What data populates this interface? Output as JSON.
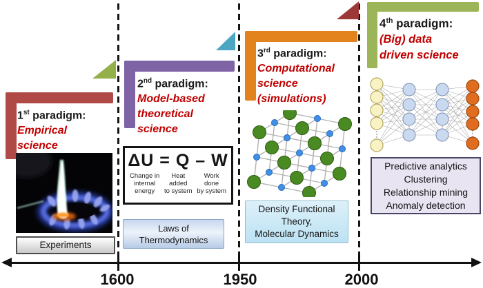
{
  "colors": {
    "red_bracket": "#b04a47",
    "purple_bracket": "#7e63a5",
    "orange_bracket": "#e2831d",
    "green_bracket": "#9bb558",
    "green_triangle": "#94b04b",
    "blue_triangle": "#4da5c4",
    "dark_red_triangle": "#9c3937",
    "paradigm_subtitle_red": "#c00000"
  },
  "paradigms": {
    "p1": {
      "num": "1",
      "sup": "st",
      "rest": " paradigm:",
      "line1": "Empirical",
      "line2": "science",
      "caption": "Experiments"
    },
    "p2": {
      "num": "2",
      "sup": "nd",
      "rest": " paradigm:",
      "line1": "Model-based",
      "line2": "theoretical",
      "line3": "science",
      "equation": {
        "formula": "ΔU = Q – W",
        "term1": {
          "l1": "Change in",
          "l2": "internal",
          "l3": "energy"
        },
        "term2": {
          "l1": "Heat",
          "l2": "added",
          "l3": "to system"
        },
        "term3": {
          "l1": "Work",
          "l2": "done",
          "l3": "by system"
        }
      },
      "caption1": "Laws of",
      "caption2": "Thermodynamics"
    },
    "p3": {
      "num": "3",
      "sup": "rd",
      "rest": " paradigm:",
      "line1": "Computational",
      "line2": "science",
      "line3": "(simulations)",
      "caption1": "Density Functional",
      "caption2": "Theory,",
      "caption3": "Molecular Dynamics"
    },
    "p4": {
      "num": "4",
      "sup": "th",
      "rest": " paradigm:",
      "line1": "(Big) data",
      "line2": "driven science",
      "caption1": "Predictive analytics",
      "caption2": "Clustering",
      "caption3": "Relationship mining",
      "caption4": "Anomaly detection"
    }
  },
  "timeline": {
    "tick1": "1600",
    "tick2": "1950",
    "tick3": "2000"
  }
}
